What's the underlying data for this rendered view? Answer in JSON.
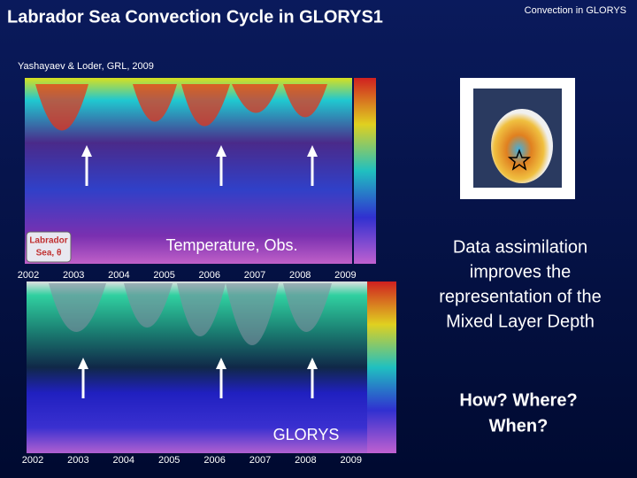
{
  "header": {
    "title": "Labrador Sea Convection Cycle in GLORYS1",
    "tag": "Convection in GLORYS"
  },
  "citation": "Yashayaev & Loder, GRL, 2009",
  "panels": [
    {
      "label": "Temperature, Obs.",
      "inset": [
        "Labrador",
        "Sea, θ"
      ],
      "years": [
        "2002",
        "2003",
        "2004",
        "2005",
        "2006",
        "2007",
        "2008",
        "2009"
      ]
    },
    {
      "label": "GLORYS",
      "years": [
        "2002",
        "2003",
        "2004",
        "2005",
        "2006",
        "2007",
        "2008",
        "2009"
      ]
    }
  ],
  "text": {
    "lines": [
      "Data assimilation",
      "improves the",
      "representation of  the",
      "Mixed Layer Depth"
    ],
    "questions": [
      "How? Where?",
      "When?"
    ]
  }
}
